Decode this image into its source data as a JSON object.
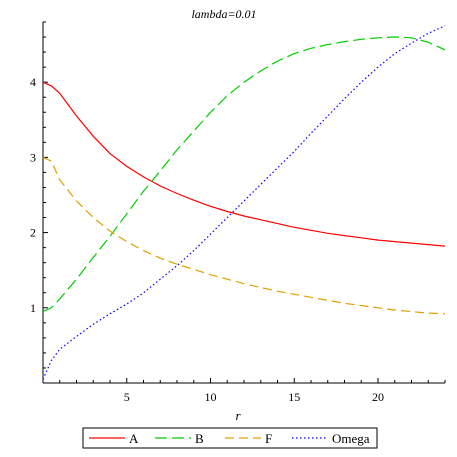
{
  "chart_data": {
    "type": "line",
    "title": "lambda=0.01",
    "xlabel": "r",
    "ylabel": "",
    "xlim": [
      0,
      24
    ],
    "ylim": [
      0,
      4.8
    ],
    "xticks": [
      "5",
      "10",
      "15",
      "20"
    ],
    "yticks": [
      "1",
      "2",
      "3",
      "4"
    ],
    "grid": false,
    "legend_position": "bottom",
    "series": [
      {
        "name": "A",
        "color": "#ff0000",
        "dash": "solid",
        "x": [
          0,
          0.5,
          1,
          2,
          3,
          4,
          5,
          6,
          7,
          8,
          9,
          10,
          11,
          12,
          13,
          14,
          15,
          16,
          17,
          18,
          19,
          20,
          21,
          22,
          23,
          24
        ],
        "y": [
          4.0,
          3.95,
          3.85,
          3.55,
          3.28,
          3.05,
          2.88,
          2.74,
          2.62,
          2.52,
          2.43,
          2.35,
          2.28,
          2.22,
          2.17,
          2.12,
          2.07,
          2.03,
          1.99,
          1.96,
          1.93,
          1.9,
          1.88,
          1.86,
          1.84,
          1.82
        ]
      },
      {
        "name": "B",
        "color": "#00cc00",
        "dash": "long",
        "x": [
          0,
          0.5,
          1,
          2,
          3,
          4,
          5,
          6,
          7,
          8,
          9,
          10,
          11,
          12,
          13,
          14,
          15,
          16,
          17,
          18,
          19,
          20,
          21,
          22,
          23,
          24
        ],
        "y": [
          0.95,
          1.0,
          1.12,
          1.38,
          1.67,
          1.95,
          2.25,
          2.55,
          2.82,
          3.1,
          3.35,
          3.6,
          3.82,
          4.0,
          4.15,
          4.28,
          4.38,
          4.45,
          4.5,
          4.54,
          4.57,
          4.59,
          4.6,
          4.59,
          4.53,
          4.43
        ]
      },
      {
        "name": "F",
        "color": "#e0a000",
        "dash": "medium",
        "x": [
          0,
          0.5,
          1,
          2,
          3,
          4,
          5,
          6,
          7,
          8,
          9,
          10,
          11,
          12,
          13,
          14,
          15,
          16,
          17,
          18,
          19,
          20,
          21,
          22,
          23,
          24
        ],
        "y": [
          3.0,
          2.95,
          2.7,
          2.42,
          2.2,
          2.02,
          1.88,
          1.76,
          1.66,
          1.58,
          1.51,
          1.44,
          1.38,
          1.32,
          1.27,
          1.22,
          1.18,
          1.14,
          1.1,
          1.06,
          1.03,
          1.0,
          0.97,
          0.95,
          0.93,
          0.92
        ]
      },
      {
        "name": "Omega",
        "color": "#0000ff",
        "dash": "dotted",
        "x": [
          0,
          0.5,
          1,
          2,
          3,
          4,
          5,
          6,
          7,
          8,
          9,
          10,
          11,
          12,
          13,
          14,
          15,
          16,
          17,
          18,
          19,
          20,
          21,
          22,
          23,
          24
        ],
        "y": [
          0.05,
          0.3,
          0.45,
          0.62,
          0.78,
          0.92,
          1.05,
          1.2,
          1.38,
          1.56,
          1.76,
          1.98,
          2.2,
          2.42,
          2.64,
          2.86,
          3.08,
          3.32,
          3.55,
          3.78,
          4.0,
          4.2,
          4.38,
          4.52,
          4.65,
          4.75
        ]
      }
    ]
  }
}
